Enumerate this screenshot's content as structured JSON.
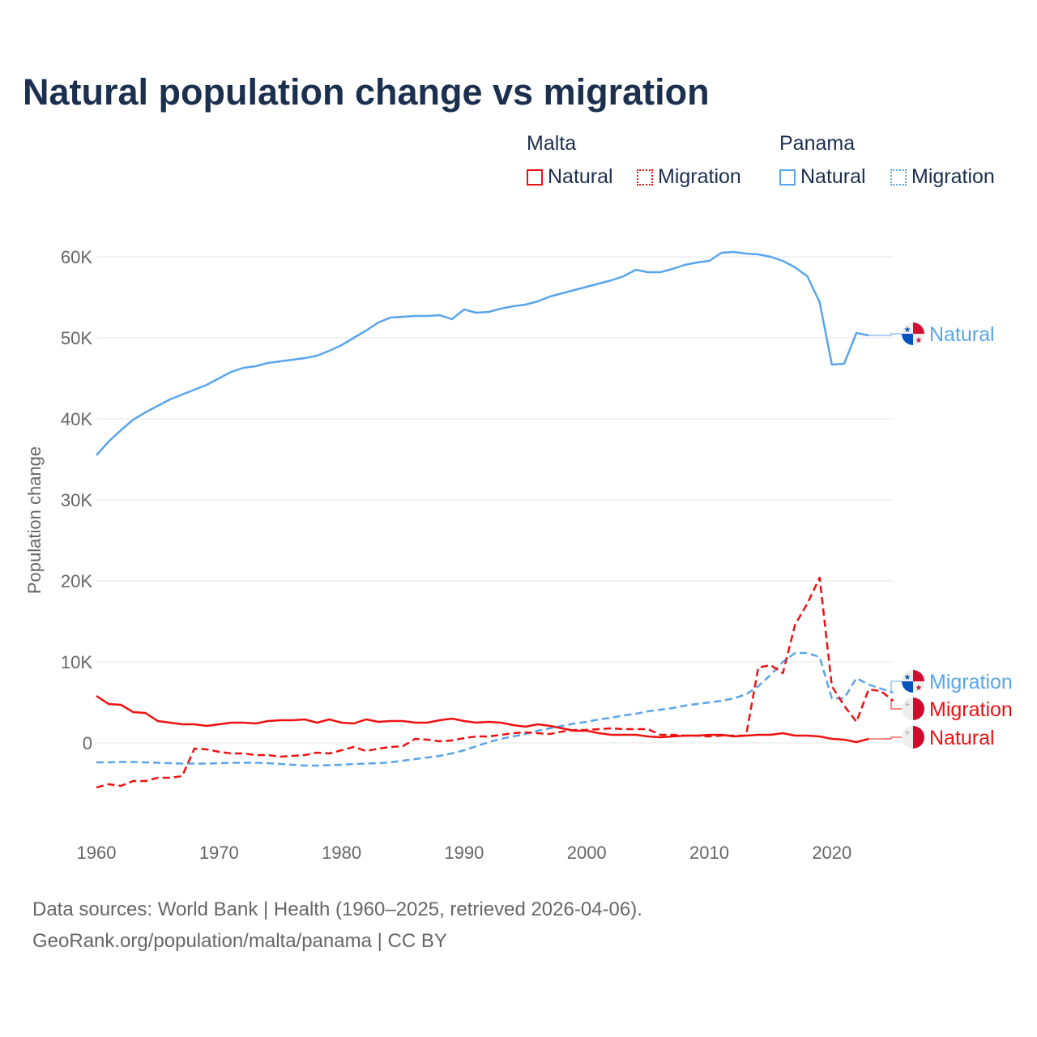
{
  "title": "Natural population change vs migration",
  "legend": {
    "groups": [
      {
        "name": "Malta",
        "items": [
          "Natural",
          "Migration"
        ],
        "color": "#ee1111"
      },
      {
        "name": "Panama",
        "items": [
          "Natural",
          "Migration"
        ],
        "color": "#5aa5ea"
      }
    ]
  },
  "sources": {
    "line1": "Data sources: World Bank | Health (1960–2025, retrieved 2026-04-06).",
    "line2": "GeoRank.org/population/malta/panama | CC BY"
  },
  "chart_data": {
    "type": "line",
    "title": "Natural population change vs migration",
    "xlabel": "",
    "ylabel": "Population change",
    "xlim": [
      1960,
      2025
    ],
    "ylim": [
      -10000,
      62000
    ],
    "xticks": [
      1960,
      1970,
      1980,
      1990,
      2000,
      2010,
      2020
    ],
    "yticks": [
      0,
      10000,
      20000,
      30000,
      40000,
      50000,
      60000
    ],
    "ytick_labels": [
      "0",
      "10K",
      "20K",
      "30K",
      "40K",
      "50K",
      "60K"
    ],
    "grid": true,
    "series": [
      {
        "name": "Panama Natural",
        "country": "Panama",
        "kind": "Natural",
        "label": "Natural",
        "color": "#5aa5ea",
        "dash": false,
        "start": 1960,
        "values": [
          35.5,
          37.2,
          38.6,
          39.9,
          40.8,
          41.6,
          42.4,
          43.0,
          43.6,
          44.2,
          45.0,
          45.8,
          46.3,
          46.5,
          46.9,
          47.1,
          47.3,
          47.5,
          47.8,
          48.4,
          49.1,
          50.0,
          50.9,
          51.9,
          52.5,
          52.6,
          52.7,
          52.7,
          52.8,
          52.3,
          53.5,
          53.1,
          53.2,
          53.6,
          53.9,
          54.1,
          54.5,
          55.1,
          55.5,
          55.9,
          56.3,
          56.7,
          57.1,
          57.6,
          58.4,
          58.1,
          58.1,
          58.5,
          59.0,
          59.3,
          59.5,
          60.5,
          60.6,
          60.4,
          60.3,
          60.0,
          59.5,
          58.7,
          57.6,
          54.4,
          46.7,
          46.8,
          50.6,
          50.3
        ]
      },
      {
        "name": "Panama Migration",
        "country": "Panama",
        "kind": "Migration",
        "label": "Migration",
        "color": "#5aa5ea",
        "dash": true,
        "start": 1960,
        "values": [
          -2.4,
          -2.4,
          -2.35,
          -2.35,
          -2.4,
          -2.45,
          -2.5,
          -2.55,
          -2.55,
          -2.55,
          -2.5,
          -2.45,
          -2.45,
          -2.45,
          -2.5,
          -2.6,
          -2.7,
          -2.8,
          -2.8,
          -2.75,
          -2.7,
          -2.6,
          -2.55,
          -2.5,
          -2.4,
          -2.2,
          -2.0,
          -1.8,
          -1.6,
          -1.3,
          -0.9,
          -0.4,
          0.1,
          0.5,
          0.8,
          1.1,
          1.5,
          1.8,
          2.1,
          2.4,
          2.6,
          2.9,
          3.1,
          3.4,
          3.6,
          3.9,
          4.1,
          4.3,
          4.6,
          4.8,
          5.0,
          5.2,
          5.5,
          6.0,
          7.0,
          8.4,
          10.0,
          11.1,
          11.1,
          10.6,
          5.5,
          5.5,
          8.0,
          7.2,
          6.7,
          6.2
        ]
      },
      {
        "name": "Malta Migration",
        "country": "Malta",
        "kind": "Migration",
        "label": "Migration",
        "color": "#ee1111",
        "dash": true,
        "start": 1960,
        "values": [
          -5.5,
          -5.1,
          -5.3,
          -4.7,
          -4.7,
          -4.3,
          -4.3,
          -4.1,
          -0.7,
          -0.8,
          -1.1,
          -1.3,
          -1.3,
          -1.5,
          -1.5,
          -1.7,
          -1.6,
          -1.5,
          -1.2,
          -1.3,
          -0.9,
          -0.5,
          -1.0,
          -0.7,
          -0.5,
          -0.4,
          0.5,
          0.4,
          0.2,
          0.3,
          0.6,
          0.8,
          0.8,
          1.0,
          1.2,
          1.3,
          1.2,
          1.1,
          1.4,
          1.6,
          1.6,
          1.7,
          1.8,
          1.7,
          1.7,
          1.7,
          1.0,
          1.0,
          0.9,
          0.9,
          0.8,
          0.9,
          0.9,
          0.9,
          9.3,
          9.6,
          8.6,
          14.6,
          17.2,
          20.4,
          7.0,
          4.6,
          2.6,
          6.6,
          6.4,
          5.2
        ]
      },
      {
        "name": "Malta Natural",
        "country": "Malta",
        "kind": "Natural",
        "label": "Natural",
        "color": "#ee1111",
        "dash": false,
        "start": 1960,
        "values": [
          5.8,
          4.8,
          4.7,
          3.8,
          3.7,
          2.7,
          2.5,
          2.3,
          2.3,
          2.1,
          2.3,
          2.5,
          2.5,
          2.4,
          2.7,
          2.8,
          2.8,
          2.9,
          2.5,
          2.9,
          2.5,
          2.4,
          2.9,
          2.6,
          2.7,
          2.7,
          2.5,
          2.5,
          2.8,
          3.0,
          2.7,
          2.5,
          2.6,
          2.5,
          2.2,
          2.0,
          2.3,
          2.1,
          1.8,
          1.5,
          1.5,
          1.2,
          1.0,
          1.0,
          1.0,
          0.8,
          0.7,
          0.8,
          0.9,
          0.9,
          1.0,
          1.0,
          0.8,
          0.9,
          1.0,
          1.0,
          1.2,
          0.9,
          0.9,
          0.8,
          0.5,
          0.4,
          0.1,
          0.5
        ]
      }
    ],
    "value_unit": "thousands"
  }
}
